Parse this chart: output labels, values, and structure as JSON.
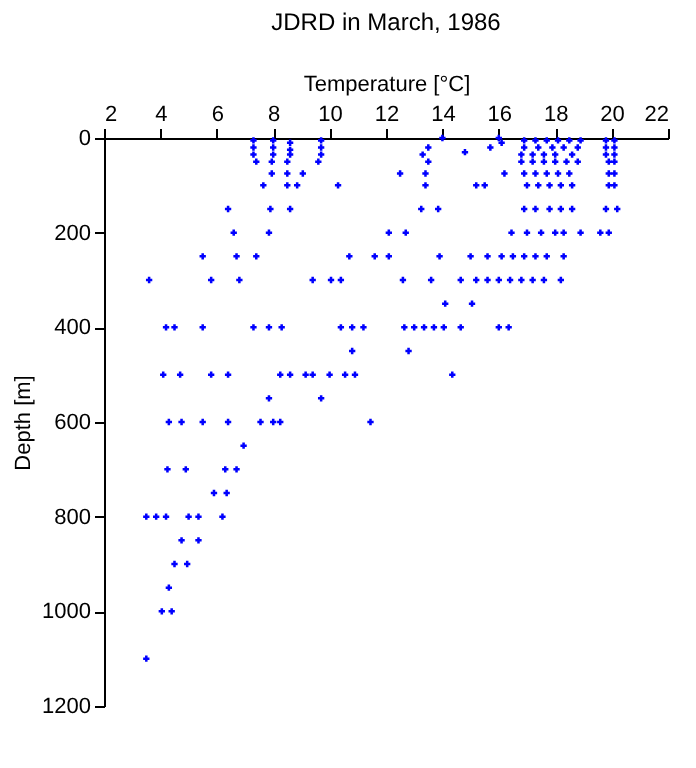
{
  "chart_data": {
    "type": "scatter",
    "title": "JDRD in March, 1986",
    "xlabel": "Temperature [°C]",
    "ylabel": "Depth [m]",
    "xlim": [
      2,
      22
    ],
    "xticks": [
      2,
      4,
      6,
      8,
      10,
      12,
      14,
      16,
      18,
      20,
      22
    ],
    "ylim": [
      1200,
      0
    ],
    "yticks": [
      0,
      200,
      400,
      600,
      800,
      1000,
      1200
    ],
    "grid": false,
    "marker": "cross",
    "series": [
      {
        "color": "#0000ff",
        "x": [
          7.3,
          7.3,
          7.3,
          8.0,
          8.0,
          8.0,
          8.6,
          8.6,
          8.6,
          9.7,
          9.7,
          9.7,
          14.0,
          16.0,
          13.5,
          13.3,
          14.8,
          15.7,
          16.1,
          16.9,
          17.3,
          17.7,
          18.1,
          18.5,
          18.9,
          16.9,
          17.4,
          17.9,
          18.3,
          18.8,
          16.8,
          17.2,
          17.6,
          18.0,
          18.6,
          19.8,
          20.1,
          19.8,
          20.1,
          19.8,
          20.1,
          7.4,
          7.95,
          8.5,
          9.6,
          13.5,
          16.8,
          17.2,
          17.6,
          18.0,
          18.4,
          18.8,
          19.9,
          20.1,
          7.95,
          8.5,
          9.05,
          12.5,
          13.4,
          16.2,
          16.9,
          17.3,
          17.7,
          18.1,
          18.5,
          19.9,
          20.1,
          7.65,
          8.5,
          8.85,
          10.3,
          13.4,
          15.2,
          15.5,
          17.0,
          17.4,
          17.8,
          18.2,
          18.6,
          19.9,
          20.1,
          6.4,
          7.9,
          8.6,
          13.25,
          13.85,
          16.9,
          17.3,
          17.8,
          18.2,
          18.6,
          19.8,
          20.2,
          6.6,
          7.85,
          12.1,
          12.7,
          16.45,
          17.0,
          17.5,
          18.0,
          18.3,
          18.9,
          19.6,
          19.9,
          5.5,
          6.7,
          7.4,
          10.7,
          11.6,
          12.1,
          13.9,
          15.0,
          15.6,
          16.1,
          16.5,
          16.9,
          17.3,
          17.7,
          18.3,
          3.6,
          5.8,
          6.8,
          9.4,
          10.05,
          10.4,
          12.6,
          13.6,
          14.65,
          15.2,
          15.6,
          16.0,
          16.4,
          16.8,
          17.2,
          17.6,
          18.2,
          14.1,
          15.05,
          4.2,
          4.5,
          5.5,
          7.3,
          7.85,
          8.3,
          10.4,
          10.8,
          11.2,
          12.65,
          13.0,
          13.35,
          13.7,
          14.05,
          14.65,
          16.0,
          16.35,
          10.8,
          12.8,
          4.1,
          4.7,
          5.8,
          6.4,
          8.25,
          8.6,
          9.15,
          9.4,
          10.0,
          10.55,
          10.9,
          14.35,
          7.85,
          9.7,
          4.3,
          4.75,
          5.5,
          6.4,
          7.55,
          8.0,
          8.25,
          11.45,
          6.95,
          4.25,
          4.9,
          6.3,
          6.7,
          5.9,
          6.35,
          3.5,
          3.85,
          4.2,
          5.0,
          5.35,
          6.2,
          4.75,
          5.35,
          4.5,
          4.95,
          4.3,
          4.05,
          4.4,
          3.5
        ],
        "values": [
          5,
          20,
          35,
          5,
          20,
          35,
          10,
          25,
          35,
          5,
          20,
          35,
          0,
          0,
          20,
          35,
          30,
          20,
          10,
          5,
          5,
          5,
          5,
          5,
          5,
          20,
          20,
          20,
          20,
          20,
          35,
          35,
          35,
          35,
          35,
          5,
          5,
          20,
          20,
          35,
          35,
          50,
          50,
          50,
          50,
          50,
          50,
          50,
          50,
          50,
          50,
          50,
          50,
          50,
          75,
          75,
          75,
          75,
          75,
          75,
          75,
          75,
          75,
          75,
          75,
          75,
          75,
          100,
          100,
          100,
          100,
          100,
          100,
          100,
          100,
          100,
          100,
          100,
          100,
          100,
          100,
          150,
          150,
          150,
          150,
          150,
          150,
          150,
          150,
          150,
          150,
          150,
          150,
          200,
          200,
          200,
          200,
          200,
          200,
          200,
          200,
          200,
          200,
          200,
          200,
          250,
          250,
          250,
          250,
          250,
          250,
          250,
          250,
          250,
          250,
          250,
          250,
          250,
          250,
          250,
          300,
          300,
          300,
          300,
          300,
          300,
          300,
          300,
          300,
          300,
          300,
          300,
          300,
          300,
          300,
          300,
          300,
          350,
          350,
          400,
          400,
          400,
          400,
          400,
          400,
          400,
          400,
          400,
          400,
          400,
          400,
          400,
          400,
          400,
          400,
          400,
          450,
          450,
          500,
          500,
          500,
          500,
          500,
          500,
          500,
          500,
          500,
          500,
          500,
          500,
          550,
          550,
          600,
          600,
          600,
          600,
          600,
          600,
          600,
          600,
          650,
          700,
          700,
          700,
          700,
          750,
          750,
          800,
          800,
          800,
          800,
          800,
          800,
          850,
          850,
          900,
          900,
          950,
          1000,
          1000,
          1100
        ]
      }
    ]
  }
}
